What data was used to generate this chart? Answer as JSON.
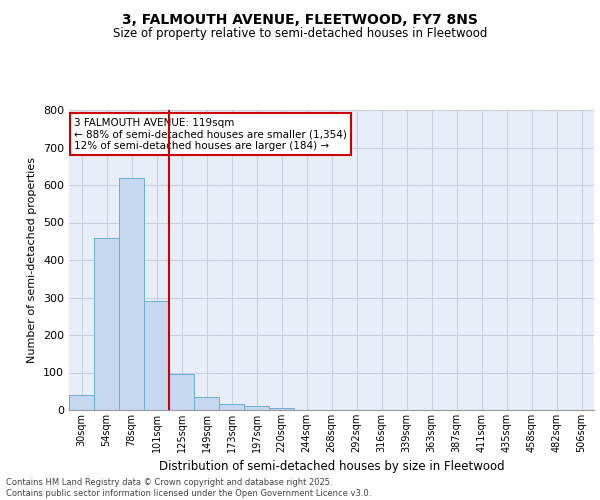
{
  "title1": "3, FALMOUTH AVENUE, FLEETWOOD, FY7 8NS",
  "title2": "Size of property relative to semi-detached houses in Fleetwood",
  "xlabel": "Distribution of semi-detached houses by size in Fleetwood",
  "ylabel": "Number of semi-detached properties",
  "bin_labels": [
    "30sqm",
    "54sqm",
    "78sqm",
    "101sqm",
    "125sqm",
    "149sqm",
    "173sqm",
    "197sqm",
    "220sqm",
    "244sqm",
    "268sqm",
    "292sqm",
    "316sqm",
    "339sqm",
    "363sqm",
    "387sqm",
    "411sqm",
    "435sqm",
    "458sqm",
    "482sqm",
    "506sqm"
  ],
  "bar_heights": [
    40,
    460,
    620,
    290,
    95,
    35,
    15,
    10,
    5,
    0,
    0,
    0,
    0,
    0,
    0,
    0,
    0,
    0,
    0,
    0,
    0
  ],
  "bar_color": "#c5d8f0",
  "bar_edge_color": "#6aaed6",
  "property_line_bin_index": 4,
  "annotation_line1": "3 FALMOUTH AVENUE: 119sqm",
  "annotation_line2": "← 88% of semi-detached houses are smaller (1,354)",
  "annotation_line3": "12% of semi-detached houses are larger (184) →",
  "red_color": "#cc0000",
  "ylim": [
    0,
    800
  ],
  "yticks": [
    0,
    100,
    200,
    300,
    400,
    500,
    600,
    700,
    800
  ],
  "grid_color": "#c8d0e0",
  "bg_color": "#e8eef8",
  "footer1": "Contains HM Land Registry data © Crown copyright and database right 2025.",
  "footer2": "Contains public sector information licensed under the Open Government Licence v3.0."
}
